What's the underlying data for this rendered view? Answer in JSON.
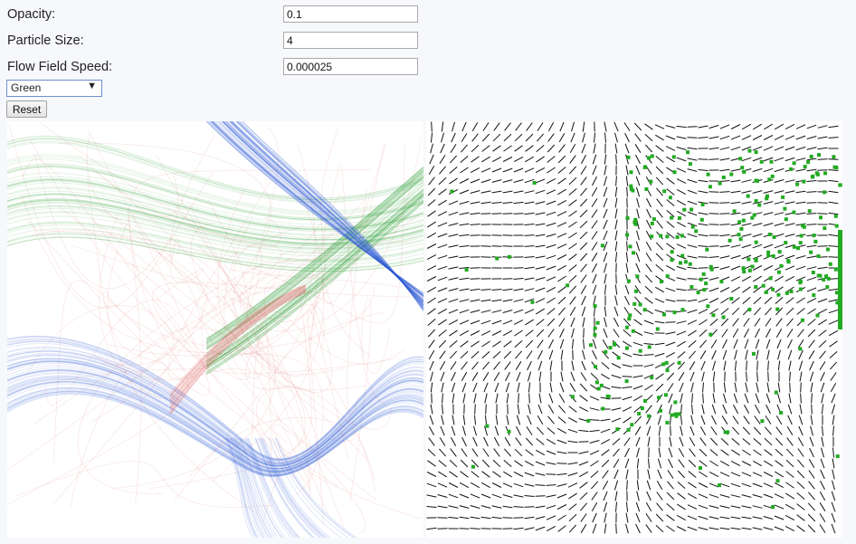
{
  "controls": {
    "opacity": {
      "label": "Opacity:",
      "value": "0.1"
    },
    "particle_size": {
      "label": "Particle Size:",
      "value": "4"
    },
    "flow_speed": {
      "label": "Flow Field Speed:",
      "value": "0.000025"
    },
    "color_select": {
      "selected": "Green",
      "arrow": "▼"
    },
    "reset_label": "Reset"
  },
  "colors": {
    "red": "#e06060",
    "green": "#1f9a2a",
    "blue": "#2b59d6",
    "field_line": "#111111",
    "particle": "#22aa22"
  }
}
